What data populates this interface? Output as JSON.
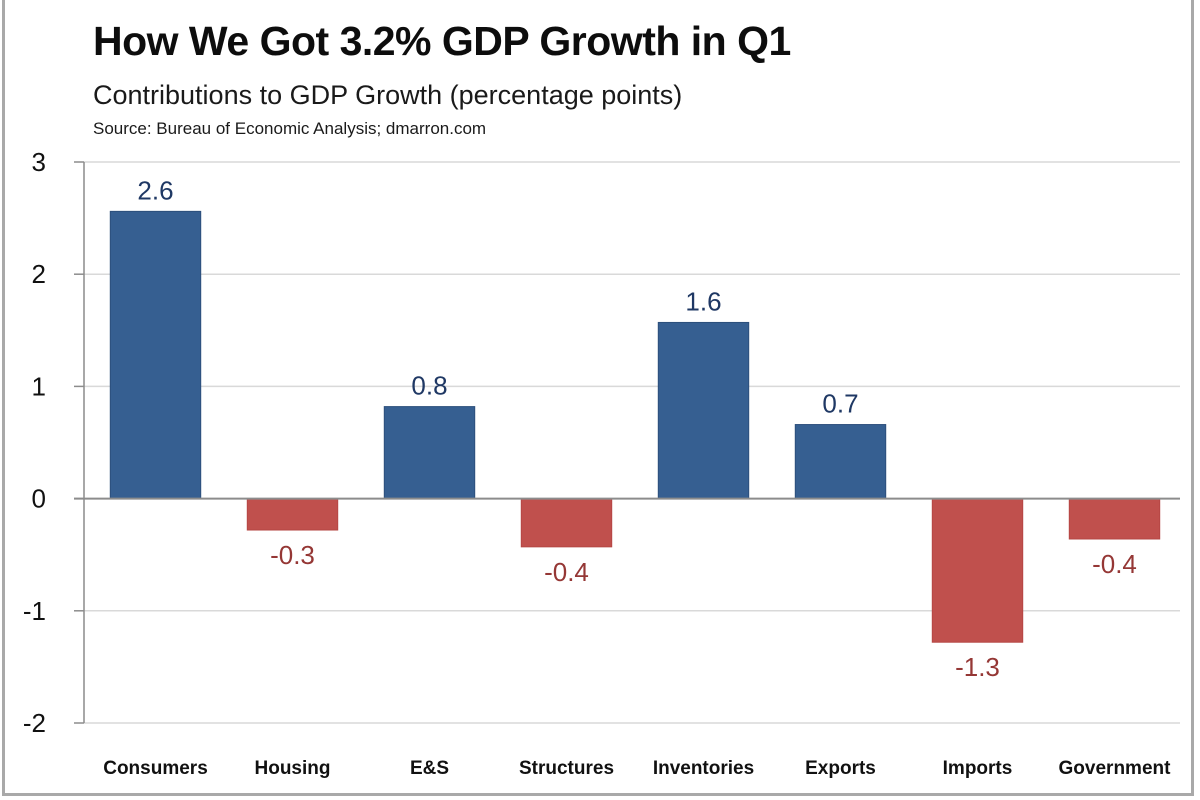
{
  "chart_data": {
    "type": "bar",
    "title": "How We Got 3.2% GDP Growth in Q1",
    "subtitle": "Contributions to GDP Growth (percentage points)",
    "source": "Source: Bureau of Economic Analysis; dmarron.com",
    "xlabel": "",
    "ylabel": "",
    "categories": [
      "Consumers",
      "Housing",
      "E&S",
      "Structures",
      "Inventories",
      "Exports",
      "Imports",
      "Government"
    ],
    "values": [
      2.56,
      -0.28,
      0.82,
      -0.43,
      1.57,
      0.66,
      -1.28,
      -0.36
    ],
    "data_labels": [
      "2.6",
      "-0.3",
      "0.8",
      "-0.4",
      "1.6",
      "0.7",
      "-1.3",
      "-0.4"
    ],
    "ylim": [
      -2,
      3
    ],
    "yticks": [
      3,
      2,
      1,
      0,
      -1,
      -2
    ],
    "ytick_labels": [
      "3",
      "2",
      "1",
      "0",
      "-1",
      "-2"
    ],
    "grid": true,
    "legend": "none",
    "colors": {
      "positive_bar": "#365f91",
      "negative_bar": "#c0504d",
      "positive_label": "#1f3864",
      "negative_label": "#953735",
      "gridline": "#d9d9d9",
      "axis": "#8c8c8c"
    }
  }
}
